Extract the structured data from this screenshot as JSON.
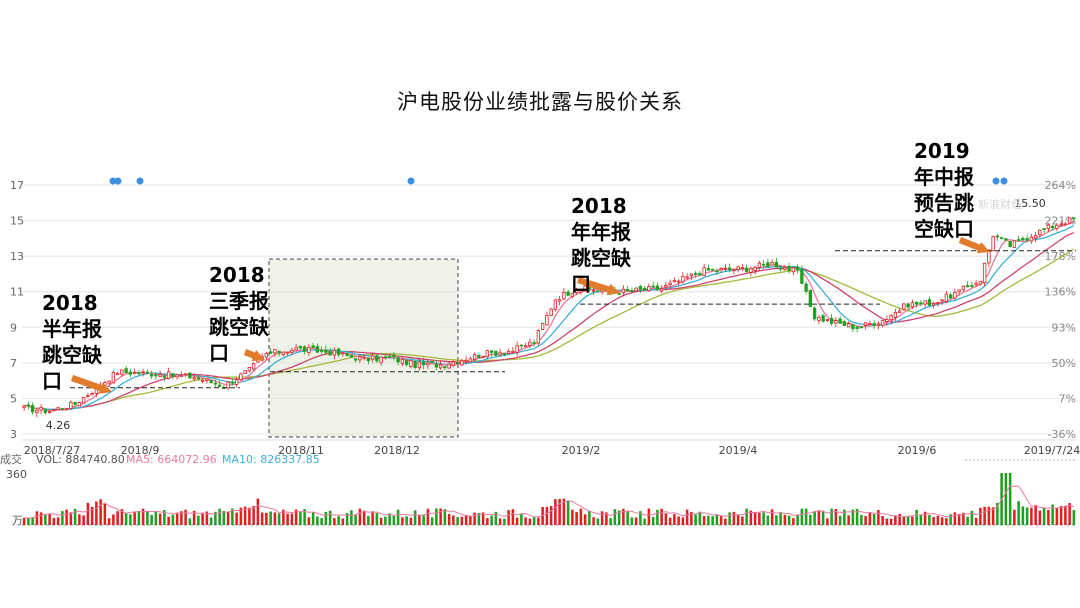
{
  "page": {
    "title": "沪电股份业绩批露与股价关系"
  },
  "annotations": [
    {
      "lines": [
        "2018",
        "半年报",
        "跳空缺",
        "口"
      ]
    },
    {
      "lines": [
        "2018",
        "三季报",
        "跳空缺",
        "口"
      ]
    },
    {
      "lines": [
        "2018",
        "年年报",
        "跳空缺",
        "口"
      ]
    },
    {
      "lines": [
        "2019",
        "年中报",
        "预告跳",
        "空缺口"
      ]
    }
  ],
  "info_bar": {
    "vol_prefix": "成交",
    "vol": "VOL: 884740.80",
    "ma5": "MA5: 664072.96",
    "ma10": "MA10: 826337.85"
  },
  "volume_axis": {
    "max_label": "360",
    "unit_label": "万"
  },
  "watermark": "新浪财经",
  "colors": {
    "up": "#e02020",
    "down": "#20a020",
    "ma5": "#e87aa0",
    "ma10": "#3bb0d8",
    "ma20": "#a8b83a",
    "ma_long": "#d0446a"
  },
  "chart_data": {
    "type": "candlestick",
    "title": "沪电股份业绩批露与股价关系",
    "y_ticks": [
      3,
      5,
      7,
      9,
      11,
      13,
      15,
      17
    ],
    "ylim": [
      3,
      17
    ],
    "right_ticks": [
      "264%",
      "221%",
      "178%",
      "136%",
      "93%",
      "50%",
      "7%",
      "-36%"
    ],
    "x_ticks": [
      "2018/7/27",
      "2018/9",
      "2018/11",
      "2018/12",
      "2019/2",
      "2019/4",
      "2019/6",
      "2019/7/24"
    ],
    "price_labels": [
      {
        "text": "4.26",
        "value": 4.26
      },
      {
        "text": "15.50",
        "value": 15.5
      }
    ],
    "gaps": [
      {
        "label": "2018半年报",
        "date_index": 17,
        "level": 5.6
      },
      {
        "label": "2018三季报",
        "date_index": 53,
        "level": 6.5
      },
      {
        "label": "2018年年报",
        "date_index": 125,
        "level": 10.3
      },
      {
        "label": "2019年中报预告",
        "date_index": 228,
        "level": 13.3
      }
    ],
    "close_anchors": [
      [
        0,
        4.45
      ],
      [
        6,
        4.3
      ],
      [
        12,
        4.7
      ],
      [
        17,
        5.6
      ],
      [
        22,
        6.5
      ],
      [
        30,
        6.4
      ],
      [
        40,
        6.2
      ],
      [
        47,
        5.7
      ],
      [
        53,
        6.6
      ],
      [
        57,
        7.5
      ],
      [
        64,
        7.8
      ],
      [
        72,
        7.6
      ],
      [
        80,
        7.2
      ],
      [
        86,
        7.3
      ],
      [
        92,
        6.9
      ],
      [
        98,
        6.9
      ],
      [
        103,
        7.2
      ],
      [
        108,
        7.5
      ],
      [
        115,
        7.7
      ],
      [
        120,
        8.2
      ],
      [
        125,
        10.6
      ],
      [
        130,
        11.2
      ],
      [
        140,
        11.0
      ],
      [
        150,
        11.2
      ],
      [
        160,
        12.2
      ],
      [
        170,
        12.3
      ],
      [
        176,
        12.6
      ],
      [
        182,
        12.1
      ],
      [
        186,
        9.6
      ],
      [
        190,
        9.3
      ],
      [
        196,
        9.0
      ],
      [
        202,
        9.4
      ],
      [
        208,
        10.3
      ],
      [
        214,
        10.4
      ],
      [
        220,
        11.0
      ],
      [
        225,
        11.7
      ],
      [
        228,
        14.2
      ],
      [
        232,
        13.6
      ],
      [
        238,
        14.3
      ],
      [
        243,
        14.8
      ],
      [
        247,
        15.1
      ]
    ],
    "volume_peak_index": 231
  }
}
